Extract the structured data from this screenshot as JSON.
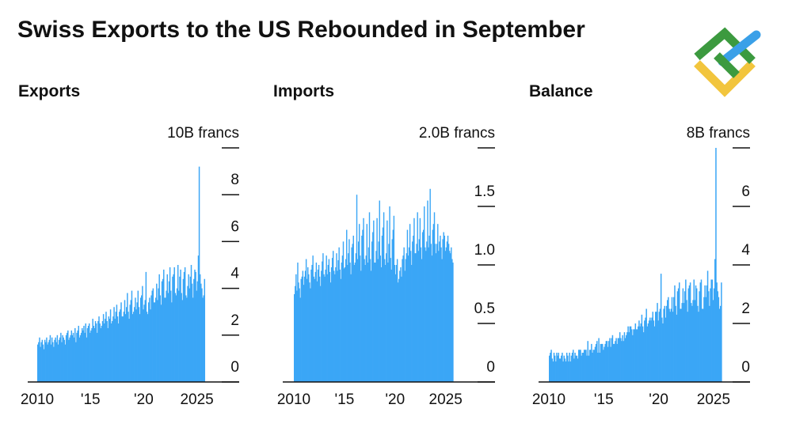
{
  "title": "Swiss Exports to the US Rebounded in September",
  "chart_data": [
    {
      "type": "bar",
      "title": "Exports",
      "color": "#3aa6f6",
      "ylim": [
        0,
        10
      ],
      "yticks": [
        0,
        2,
        4,
        6,
        8,
        {
          "value": 10,
          "label": "10B francs"
        }
      ],
      "categories": [
        "2010",
        null,
        null,
        null,
        null,
        null,
        null,
        null,
        null,
        null,
        null,
        null,
        null,
        null,
        null,
        null,
        null,
        null,
        null,
        null,
        null,
        null,
        null,
        null,
        null,
        null,
        null,
        null,
        null,
        null,
        null,
        null,
        null,
        null,
        null,
        null,
        null,
        null,
        null,
        null,
        null,
        null,
        null,
        null,
        null,
        null,
        null,
        null,
        null,
        null,
        null,
        null,
        null,
        null,
        null,
        null,
        null,
        null,
        null,
        null,
        "'15",
        null,
        null,
        null,
        null,
        null,
        null,
        null,
        null,
        null,
        null,
        null,
        null,
        null,
        null,
        null,
        null,
        null,
        null,
        null,
        null,
        null,
        null,
        null,
        null,
        null,
        null,
        null,
        null,
        null,
        null,
        null,
        null,
        null,
        null,
        null,
        null,
        null,
        null,
        null,
        null,
        null,
        null,
        null,
        null,
        null,
        null,
        null,
        null,
        null,
        null,
        null,
        null,
        null,
        null,
        null,
        null,
        null,
        null,
        null,
        "'20",
        null,
        null,
        null,
        null,
        null,
        null,
        null,
        null,
        null,
        null,
        null,
        null,
        null,
        null,
        null,
        null,
        null,
        null,
        null,
        null,
        null,
        null,
        null,
        null,
        null,
        null,
        null,
        null,
        null,
        null,
        null,
        null,
        null,
        null,
        null,
        null,
        null,
        null,
        null,
        null,
        null,
        null,
        null,
        null,
        null,
        null,
        null,
        null,
        null,
        null,
        null,
        null,
        null,
        null,
        null,
        null,
        null,
        null,
        null,
        "2025",
        null,
        null,
        null,
        null,
        null,
        null,
        null,
        null
      ],
      "values": [
        1.6,
        1.7,
        1.9,
        1.5,
        1.7,
        1.8,
        1.6,
        1.4,
        1.8,
        1.7,
        1.9,
        1.6,
        1.7,
        1.8,
        2.0,
        1.6,
        1.9,
        1.7,
        1.5,
        1.8,
        1.9,
        1.7,
        2.0,
        1.6,
        1.8,
        1.9,
        2.1,
        1.7,
        2.0,
        1.9,
        1.8,
        1.6,
        2.0,
        2.1,
        2.2,
        1.8,
        1.9,
        2.0,
        2.2,
        2.0,
        2.1,
        1.9,
        2.3,
        1.7,
        2.1,
        2.2,
        2.4,
        1.9,
        2.0,
        2.1,
        2.3,
        2.2,
        2.4,
        2.1,
        2.5,
        1.9,
        2.3,
        2.4,
        2.5,
        2.1,
        2.2,
        2.3,
        2.7,
        2.4,
        2.3,
        2.6,
        2.5,
        2.1,
        2.6,
        2.8,
        2.5,
        2.3,
        2.4,
        2.6,
        2.9,
        2.5,
        2.7,
        3.0,
        2.6,
        2.3,
        2.8,
        2.7,
        3.1,
        2.5,
        2.6,
        2.8,
        3.2,
        2.7,
        3.0,
        3.3,
        2.8,
        2.5,
        3.0,
        3.1,
        3.4,
        2.8,
        2.8,
        3.0,
        3.5,
        2.9,
        3.2,
        3.8,
        3.0,
        2.7,
        3.3,
        3.5,
        3.9,
        2.9,
        3.0,
        3.2,
        3.6,
        3.1,
        3.4,
        3.9,
        3.2,
        2.9,
        3.6,
        3.7,
        4.1,
        3.1,
        3.3,
        3.5,
        4.7,
        3.0,
        2.9,
        3.4,
        3.6,
        3.1,
        3.7,
        3.9,
        4.0,
        3.4,
        3.4,
        3.6,
        4.2,
        3.5,
        4.0,
        4.6,
        3.7,
        3.3,
        4.3,
        4.4,
        4.8,
        3.6,
        3.6,
        3.9,
        4.6,
        3.8,
        4.3,
        4.9,
        3.9,
        3.4,
        4.5,
        4.6,
        4.9,
        3.8,
        3.7,
        4.0,
        5.0,
        3.9,
        4.5,
        4.8,
        3.8,
        3.5,
        4.4,
        4.7,
        4.9,
        3.7,
        3.6,
        4.1,
        4.6,
        4.0,
        4.5,
        5.0,
        4.2,
        3.6,
        4.4,
        4.8,
        4.7,
        3.9,
        4.3,
        5.4,
        9.2,
        4.6,
        4.2,
        4.0,
        3.6,
        3.7,
        4.4
      ]
    },
    {
      "type": "bar",
      "title": "Imports",
      "color": "#3aa6f6",
      "ylim": [
        0,
        2
      ],
      "yticks": [
        0,
        0.5,
        {
          "value": 1,
          "label": "1.0"
        },
        1.5,
        {
          "value": 2,
          "label": "2.0B francs"
        }
      ],
      "categories": [
        "2010",
        null,
        null,
        null,
        null,
        null,
        null,
        null,
        null,
        null,
        null,
        null,
        null,
        null,
        null,
        null,
        null,
        null,
        null,
        null,
        null,
        null,
        null,
        null,
        null,
        null,
        null,
        null,
        null,
        null,
        null,
        null,
        null,
        null,
        null,
        null,
        null,
        null,
        null,
        null,
        null,
        null,
        null,
        null,
        null,
        null,
        null,
        null,
        null,
        null,
        null,
        null,
        null,
        null,
        null,
        null,
        null,
        null,
        null,
        null,
        "'15",
        null,
        null,
        null,
        null,
        null,
        null,
        null,
        null,
        null,
        null,
        null,
        null,
        null,
        null,
        null,
        null,
        null,
        null,
        null,
        null,
        null,
        null,
        null,
        null,
        null,
        null,
        null,
        null,
        null,
        null,
        null,
        null,
        null,
        null,
        null,
        null,
        null,
        null,
        null,
        null,
        null,
        null,
        null,
        null,
        null,
        null,
        null,
        null,
        null,
        null,
        null,
        null,
        null,
        null,
        null,
        null,
        null,
        null,
        null,
        "'20",
        null,
        null,
        null,
        null,
        null,
        null,
        null,
        null,
        null,
        null,
        null,
        null,
        null,
        null,
        null,
        null,
        null,
        null,
        null,
        null,
        null,
        null,
        null,
        null,
        null,
        null,
        null,
        null,
        null,
        null,
        null,
        null,
        null,
        null,
        null,
        null,
        null,
        null,
        null,
        null,
        null,
        null,
        null,
        null,
        null,
        null,
        null,
        null,
        null,
        null,
        null,
        null,
        null,
        null,
        null,
        null,
        null,
        null,
        null,
        "2025",
        null,
        null,
        null,
        null,
        null,
        null,
        null,
        null
      ],
      "values": [
        0.75,
        0.82,
        0.92,
        0.78,
        1.02,
        0.85,
        0.8,
        0.72,
        0.88,
        0.9,
        0.95,
        0.83,
        0.9,
        0.95,
        1.05,
        0.88,
        0.98,
        0.92,
        0.85,
        0.8,
        0.96,
        1.0,
        1.08,
        0.9,
        0.88,
        0.94,
        1.02,
        0.86,
        0.96,
        1.0,
        0.9,
        0.82,
        0.95,
        1.03,
        1.1,
        0.92,
        0.9,
        0.96,
        1.08,
        0.92,
        1.0,
        1.05,
        0.94,
        0.85,
        0.98,
        1.06,
        1.12,
        0.95,
        0.92,
        0.98,
        1.1,
        0.95,
        1.04,
        1.15,
        0.96,
        0.88,
        1.02,
        1.08,
        1.2,
        0.97,
        0.98,
        1.05,
        1.3,
        1.0,
        1.1,
        1.22,
        1.02,
        0.92,
        1.15,
        1.18,
        1.25,
        1.0,
        1.02,
        1.1,
        1.6,
        1.05,
        1.2,
        1.35,
        1.08,
        0.95,
        1.25,
        1.3,
        1.4,
        1.05,
        1.0,
        1.08,
        1.35,
        1.02,
        1.15,
        1.45,
        1.05,
        0.95,
        1.2,
        1.28,
        1.38,
        1.02,
        1.02,
        1.12,
        1.4,
        1.05,
        1.2,
        1.55,
        1.08,
        0.98,
        1.25,
        1.32,
        1.45,
        1.05,
        1.0,
        1.1,
        1.38,
        1.02,
        1.18,
        1.5,
        1.06,
        0.96,
        1.22,
        1.3,
        1.42,
        1.0,
        0.92,
        1.0,
        1.05,
        0.85,
        0.88,
        0.95,
        0.98,
        0.9,
        1.05,
        1.08,
        1.15,
        0.95,
        1.05,
        1.1,
        1.3,
        1.08,
        1.15,
        1.35,
        1.12,
        1.0,
        1.2,
        1.25,
        1.4,
        1.1,
        1.1,
        1.18,
        1.45,
        1.12,
        1.22,
        1.4,
        1.15,
        1.05,
        1.28,
        1.3,
        1.5,
        1.15,
        1.12,
        1.2,
        1.55,
        1.15,
        1.25,
        1.65,
        1.18,
        1.08,
        1.3,
        1.35,
        1.45,
        1.18,
        1.1,
        1.18,
        1.35,
        1.12,
        1.2,
        1.25,
        1.15,
        1.05,
        1.22,
        1.28,
        1.25,
        1.12,
        1.15,
        1.2,
        1.25,
        1.18,
        1.12,
        1.1,
        1.15,
        1.05,
        1.02
      ]
    },
    {
      "type": "bar",
      "title": "Balance",
      "color": "#3aa6f6",
      "ylim": [
        0,
        8
      ],
      "yticks": [
        0,
        2,
        4,
        6,
        {
          "value": 8,
          "label": "8B francs"
        }
      ],
      "categories": [
        "2010",
        null,
        null,
        null,
        null,
        null,
        null,
        null,
        null,
        null,
        null,
        null,
        null,
        null,
        null,
        null,
        null,
        null,
        null,
        null,
        null,
        null,
        null,
        null,
        null,
        null,
        null,
        null,
        null,
        null,
        null,
        null,
        null,
        null,
        null,
        null,
        null,
        null,
        null,
        null,
        null,
        null,
        null,
        null,
        null,
        null,
        null,
        null,
        null,
        null,
        null,
        null,
        null,
        null,
        null,
        null,
        null,
        null,
        null,
        null,
        "'15",
        null,
        null,
        null,
        null,
        null,
        null,
        null,
        null,
        null,
        null,
        null,
        null,
        null,
        null,
        null,
        null,
        null,
        null,
        null,
        null,
        null,
        null,
        null,
        null,
        null,
        null,
        null,
        null,
        null,
        null,
        null,
        null,
        null,
        null,
        null,
        null,
        null,
        null,
        null,
        null,
        null,
        null,
        null,
        null,
        null,
        null,
        null,
        null,
        null,
        null,
        null,
        null,
        null,
        null,
        null,
        null,
        null,
        null,
        null,
        "'20",
        null,
        null,
        null,
        null,
        null,
        null,
        null,
        null,
        null,
        null,
        null,
        null,
        null,
        null,
        null,
        null,
        null,
        null,
        null,
        null,
        null,
        null,
        null,
        null,
        null,
        null,
        null,
        null,
        null,
        null,
        null,
        null,
        null,
        null,
        null,
        null,
        null,
        null,
        null,
        null,
        null,
        null,
        null,
        null,
        null,
        null,
        null,
        null,
        null,
        null,
        null,
        null,
        null,
        null,
        null,
        null,
        null,
        null,
        null,
        "2025",
        null,
        null,
        null,
        null,
        null,
        null,
        null,
        null
      ],
      "values": [
        0.9,
        1.0,
        1.1,
        0.8,
        0.7,
        1.0,
        0.9,
        0.7,
        1.0,
        0.9,
        1.0,
        0.8,
        0.8,
        0.9,
        1.0,
        0.7,
        0.9,
        0.8,
        0.7,
        1.0,
        0.9,
        0.7,
        1.0,
        0.7,
        0.9,
        1.0,
        1.1,
        0.8,
        1.0,
        0.9,
        0.9,
        0.8,
        1.1,
        1.1,
        1.1,
        0.9,
        1.0,
        1.0,
        1.1,
        1.1,
        1.1,
        0.9,
        1.4,
        0.9,
        1.1,
        1.1,
        1.3,
        1.0,
        1.1,
        1.1,
        1.2,
        1.3,
        1.4,
        1.0,
        1.5,
        1.0,
        1.3,
        1.3,
        1.3,
        1.1,
        1.2,
        1.3,
        1.4,
        1.4,
        1.2,
        1.4,
        1.5,
        1.2,
        1.5,
        1.6,
        1.3,
        1.3,
        1.4,
        1.5,
        1.3,
        1.5,
        1.5,
        1.7,
        1.5,
        1.4,
        1.6,
        1.4,
        1.7,
        1.5,
        1.6,
        1.7,
        1.9,
        1.7,
        1.9,
        1.9,
        1.8,
        1.6,
        1.8,
        1.8,
        2.0,
        1.8,
        1.8,
        1.9,
        2.1,
        1.9,
        2.0,
        2.3,
        1.9,
        1.7,
        2.1,
        2.2,
        2.5,
        1.9,
        2.0,
        2.1,
        2.2,
        2.1,
        2.2,
        2.4,
        2.1,
        1.9,
        2.4,
        2.4,
        2.7,
        2.1,
        2.4,
        2.5,
        3.7,
        2.2,
        2.0,
        2.5,
        2.6,
        2.2,
        2.6,
        2.8,
        2.9,
        2.5,
        2.4,
        2.5,
        2.9,
        2.4,
        2.9,
        3.3,
        2.6,
        2.3,
        3.1,
        3.2,
        3.4,
        2.5,
        2.5,
        2.7,
        3.2,
        2.7,
        3.1,
        3.5,
        2.8,
        2.4,
        3.2,
        3.3,
        3.4,
        2.7,
        2.6,
        2.8,
        3.5,
        2.8,
        3.3,
        3.2,
        2.6,
        2.4,
        3.1,
        3.4,
        3.5,
        2.5,
        2.5,
        2.9,
        3.3,
        2.9,
        3.3,
        3.8,
        3.1,
        2.6,
        3.2,
        3.5,
        3.5,
        2.8,
        3.2,
        4.2,
        8.0,
        3.4,
        3.1,
        2.9,
        2.5,
        2.6,
        3.4
      ]
    }
  ]
}
